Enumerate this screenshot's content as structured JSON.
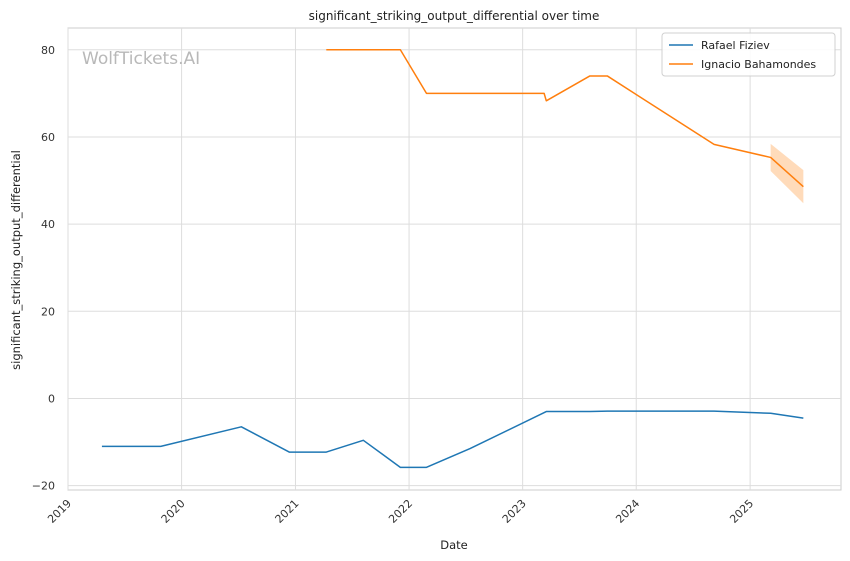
{
  "chart_data": {
    "type": "line",
    "title": "significant_striking_output_differential over time",
    "xlabel": "Date",
    "ylabel": "significant_striking_output_differential",
    "watermark": "WolfTickets.AI",
    "xlim": [
      "2019-01-01",
      "2025-10-20"
    ],
    "ylim": [
      -21,
      85
    ],
    "x_ticks": [
      "2019-01-01",
      "2020-01-01",
      "2021-01-01",
      "2022-01-01",
      "2023-01-01",
      "2024-01-01",
      "2025-01-01"
    ],
    "x_tick_labels": [
      "2019",
      "2020",
      "2021",
      "2022",
      "2023",
      "2024",
      "2025"
    ],
    "y_ticks": [
      -20,
      0,
      20,
      40,
      60,
      80
    ],
    "y_tick_labels": [
      "−20",
      "0",
      "20",
      "40",
      "60",
      "80"
    ],
    "grid": true,
    "legend_position": "top-right",
    "series": [
      {
        "name": "Rafael Fiziev",
        "color": "#1f77b4",
        "x": [
          "2019-04-20",
          "2019-10-26",
          "2020-07-11",
          "2020-12-12",
          "2021-04-10",
          "2021-08-07",
          "2021-12-04",
          "2022-02-26",
          "2022-07-16",
          "2023-03-18",
          "2023-08-05",
          "2023-09-30",
          "2024-09-07",
          "2025-03-08",
          "2025-06-21"
        ],
        "y": [
          -11,
          -11,
          -6.5,
          -12.3,
          -12.3,
          -9.6,
          -15.8,
          -15.8,
          -11.5,
          -3.0,
          -3.0,
          -2.9,
          -2.9,
          -3.4,
          -4.5
        ]
      },
      {
        "name": "Ignacio Bahamondes",
        "color": "#ff7f0e",
        "band_color": "#ffd7b3",
        "x": [
          "2021-04-10",
          "2021-12-04",
          "2022-02-26",
          "2023-03-11",
          "2023-03-18",
          "2023-08-05",
          "2023-09-30",
          "2024-09-07",
          "2025-03-08",
          "2025-06-21"
        ],
        "y": [
          80,
          80,
          70,
          70,
          68.3,
          74,
          74,
          58.3,
          55.3,
          48.6
        ],
        "band_x": [
          "2025-03-08",
          "2025-06-21"
        ],
        "band_lower": [
          52.2,
          44.8
        ],
        "band_upper": [
          58.4,
          52.4
        ]
      }
    ]
  }
}
